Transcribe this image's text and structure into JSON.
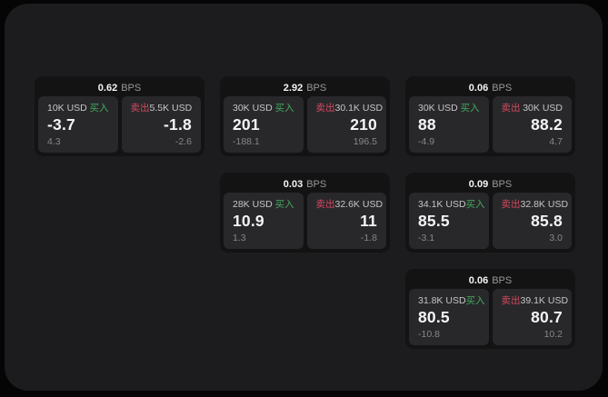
{
  "labels": {
    "bps_unit": "BPS",
    "buy": "买入",
    "sell": "卖出"
  },
  "colors": {
    "page_bg": "#050505",
    "panel_bg": "#1c1c1e",
    "card_bg": "#131314",
    "tile_bg": "#28282a",
    "value_white": "#f4f4f5",
    "size_label_gray": "#c6c6c8",
    "dim_gray": "#87878b",
    "buy_green": "#44a95f",
    "sell_red": "#d2495f"
  },
  "cards": [
    {
      "grid": {
        "row": 1,
        "col": 1
      },
      "bps": "0.62",
      "buy": {
        "size": "10K USD",
        "value": "-3.7",
        "delta": "4.3"
      },
      "sell": {
        "size": "5.5K USD",
        "value": "-1.8",
        "delta": "-2.6"
      }
    },
    {
      "grid": {
        "row": 1,
        "col": 2
      },
      "bps": "2.92",
      "buy": {
        "size": "30K USD",
        "value": "201",
        "delta": "-188.1"
      },
      "sell": {
        "size": "30.1K USD",
        "value": "210",
        "delta": "196.5"
      }
    },
    {
      "grid": {
        "row": 1,
        "col": 3
      },
      "bps": "0.06",
      "buy": {
        "size": "30K USD",
        "value": "88",
        "delta": "-4.9"
      },
      "sell": {
        "size": "30K USD",
        "value": "88.2",
        "delta": "4.7"
      }
    },
    {
      "grid": {
        "row": 2,
        "col": 2
      },
      "bps": "0.03",
      "buy": {
        "size": "28K USD",
        "value": "10.9",
        "delta": "1.3"
      },
      "sell": {
        "size": "32.6K USD",
        "value": "11",
        "delta": "-1.8"
      }
    },
    {
      "grid": {
        "row": 2,
        "col": 3
      },
      "bps": "0.09",
      "buy": {
        "size": "34.1K USD",
        "value": "85.5",
        "delta": "-3.1"
      },
      "sell": {
        "size": "32.8K USD",
        "value": "85.8",
        "delta": "3.0"
      }
    },
    {
      "grid": {
        "row": 3,
        "col": 3
      },
      "bps": "0.06",
      "buy": {
        "size": "31.8K USD",
        "value": "80.5",
        "delta": "-10.8"
      },
      "sell": {
        "size": "39.1K USD",
        "value": "80.7",
        "delta": "10.2"
      }
    }
  ]
}
